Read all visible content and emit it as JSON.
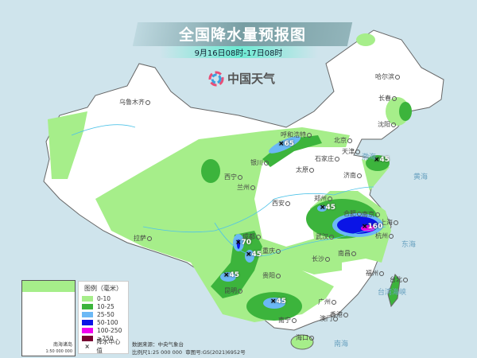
{
  "title": "全国降水量预报图",
  "subtitle": "9月16日08时-17日08时",
  "logo": {
    "text": "中国天气",
    "icon": "pinwheel-logo-icon"
  },
  "colors": {
    "sea": "#cfe4ec",
    "land": "#ffffff",
    "r0_10": "#a6ee8a",
    "r10_25": "#3cb43c",
    "r25_50": "#6bb8f5",
    "r50_100": "#0a14e6",
    "r100_250": "#f000f0",
    "r250": "#780032"
  },
  "cities": [
    "乌鲁木齐",
    "哈尔滨",
    "长春",
    "沈阳",
    "呼和浩特",
    "北京",
    "天津",
    "石家庄",
    "太原",
    "济南",
    "银川",
    "西宁",
    "兰州",
    "西安",
    "郑州",
    "合肥",
    "南京",
    "上海",
    "杭州",
    "武汉",
    "长沙",
    "南昌",
    "福州",
    "台北",
    "广州",
    "香港",
    "澳门",
    "海口",
    "南宁",
    "贵阳",
    "昆明",
    "成都",
    "重庆",
    "拉萨"
  ],
  "seas": [
    "渤海",
    "黄海",
    "东海",
    "南海",
    "台湾海峡"
  ],
  "rain_centers": [
    "65",
    "45",
    "45",
    "160",
    "70",
    "45",
    "45",
    "45"
  ],
  "legend": {
    "title": "图例（毫米）",
    "items": [
      "0-10",
      "10-25",
      "25-50",
      "50-100",
      "100-250",
      "≥250"
    ],
    "center_label": "降水中心值"
  },
  "inset": {
    "label": "南海诸岛",
    "scale": "1:50 000 000"
  },
  "source": {
    "data": "数据来源：中央气象台",
    "scale": "比例尺1:25 000 000",
    "review": "审图号:GS(2021)6952号"
  }
}
